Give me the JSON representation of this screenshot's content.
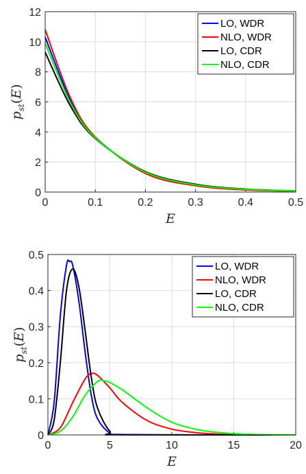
{
  "chart_data": [
    {
      "type": "line",
      "xlabel": "E",
      "ylabel": {
        "base": "p",
        "sub": "st",
        "arg": "E"
      },
      "xlim": [
        0,
        0.5
      ],
      "ylim": [
        0,
        12
      ],
      "xticks": [
        "0",
        "0.1",
        "0.2",
        "0.3",
        "0.4",
        "0.5"
      ],
      "yticks": [
        "0",
        "2",
        "4",
        "6",
        "8",
        "10",
        "12"
      ],
      "grid": true,
      "legend_position": "top-right",
      "series": [
        {
          "name": "LO, WDR",
          "color": "#0000ff",
          "x": [
            0,
            0.05,
            0.1,
            0.2,
            0.3,
            0.4,
            0.5
          ],
          "y": [
            10.3,
            6.13,
            3.65,
            1.29,
            0.46,
            0.16,
            0.06
          ]
        },
        {
          "name": "NLO, WDR",
          "color": "#ff0000",
          "x": [
            0,
            0.05,
            0.1,
            0.2,
            0.3,
            0.4,
            0.5
          ],
          "y": [
            10.8,
            6.29,
            3.66,
            1.24,
            0.42,
            0.14,
            0.05
          ]
        },
        {
          "name": "LO, CDR",
          "color": "#000000",
          "x": [
            0,
            0.05,
            0.1,
            0.2,
            0.3,
            0.4,
            0.5
          ],
          "y": [
            9.3,
            5.75,
            3.56,
            1.36,
            0.52,
            0.2,
            0.08
          ]
        },
        {
          "name": "NLO, CDR",
          "color": "#00ff00",
          "x": [
            0,
            0.05,
            0.1,
            0.2,
            0.3,
            0.4,
            0.5
          ],
          "y": [
            9.9,
            5.95,
            3.6,
            1.32,
            0.48,
            0.18,
            0.07
          ]
        }
      ]
    },
    {
      "type": "line",
      "xlabel": "E",
      "ylabel": {
        "base": "p",
        "sub": "st",
        "arg": "E"
      },
      "xlim": [
        0,
        20
      ],
      "ylim": [
        0,
        0.5
      ],
      "xticks": [
        "0",
        "5",
        "10",
        "15",
        "20"
      ],
      "yticks": [
        "0",
        "0.1",
        "0.2",
        "0.3",
        "0.4",
        "0.5"
      ],
      "grid": true,
      "legend_position": "top-right",
      "series": [
        {
          "name": "LO, WDR",
          "color": "#0000ff",
          "x": [
            0,
            0.5,
            1,
            1.5,
            1.75,
            2,
            2.5,
            3,
            3.5,
            4,
            5,
            6,
            20
          ],
          "y": [
            0,
            0.09,
            0.33,
            0.47,
            0.48,
            0.47,
            0.37,
            0.23,
            0.11,
            0.045,
            0.005,
            0,
            0
          ]
        },
        {
          "name": "NLO, WDR",
          "color": "#ff0000",
          "x": [
            0,
            1,
            2,
            3,
            3.5,
            4,
            5,
            6,
            8,
            10,
            12,
            14,
            16,
            20
          ],
          "y": [
            0,
            0.02,
            0.09,
            0.155,
            0.17,
            0.165,
            0.13,
            0.09,
            0.04,
            0.016,
            0.006,
            0.002,
            0.0005,
            0
          ]
        },
        {
          "name": "LO, CDR",
          "color": "#000000",
          "x": [
            0,
            0.5,
            1,
            1.5,
            2,
            2.5,
            3,
            3.5,
            4,
            5,
            6,
            20
          ],
          "y": [
            0,
            0.04,
            0.2,
            0.4,
            0.46,
            0.41,
            0.29,
            0.16,
            0.075,
            0.01,
            0.001,
            0
          ]
        },
        {
          "name": "NLO, CDR",
          "color": "#00ff00",
          "x": [
            0,
            1,
            2,
            3,
            4,
            4.5,
            5,
            6,
            8,
            10,
            12,
            14,
            16,
            18,
            20
          ],
          "y": [
            0,
            0.01,
            0.05,
            0.11,
            0.148,
            0.15,
            0.145,
            0.125,
            0.075,
            0.035,
            0.015,
            0.006,
            0.002,
            0.0005,
            0
          ]
        }
      ]
    }
  ]
}
